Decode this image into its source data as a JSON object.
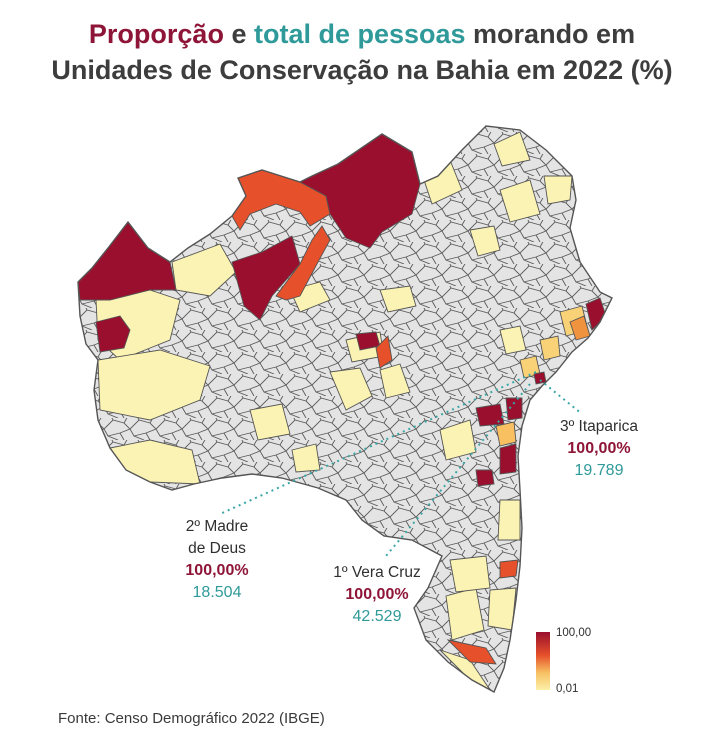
{
  "title": {
    "part_proportion": "Proporção",
    "part_and": " e ",
    "part_total": "total de pessoas",
    "part_rest1": " morando em",
    "line2": "Unidades de Conservação na Bahia em 2022 (%)"
  },
  "colors": {
    "proportion": "#8e1537",
    "total": "#2f9a99",
    "municipality_default": "#e4e4e4",
    "scale_high": "#9a0f2e",
    "scale_mid_high": "#e6502a",
    "scale_mid": "#f7c062",
    "scale_low": "#fbf0a8"
  },
  "annotations": [
    {
      "rank_name": "3º Itaparica",
      "proportion": "100,00%",
      "total": "19.789"
    },
    {
      "rank_name_line1": "2º Madre",
      "rank_name_line2": "de Deus",
      "proportion": "100,00%",
      "total": "18.504"
    },
    {
      "rank_name": "1º Vera Cruz",
      "proportion": "100,00%",
      "total": "42.529"
    }
  ],
  "legend": {
    "max_label": "100,00",
    "min_label": "0,01"
  },
  "source": "Fonte: Censo Demográfico 2022 (IBGE)"
}
